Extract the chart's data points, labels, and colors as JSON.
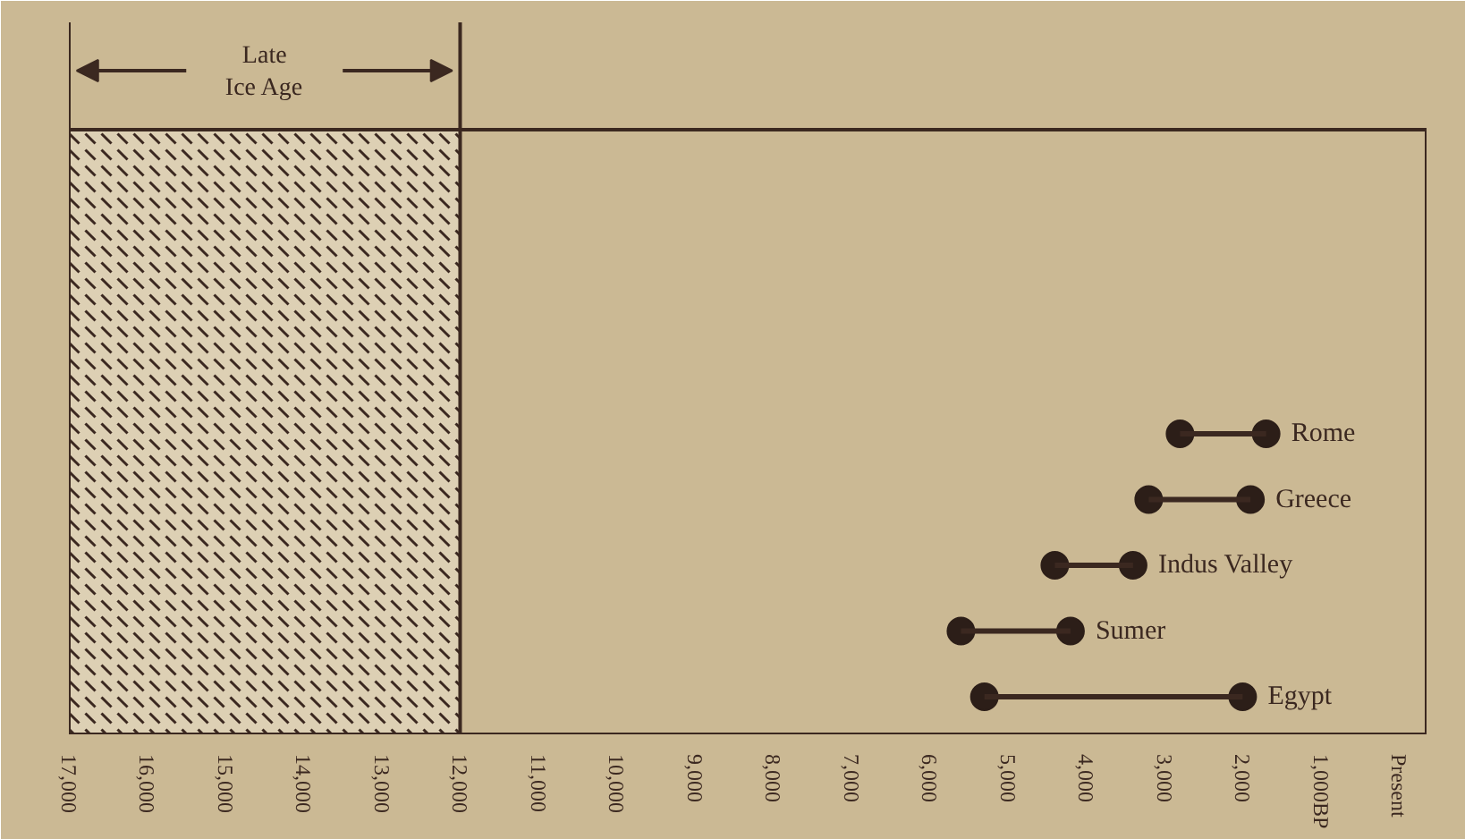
{
  "chart_data": {
    "type": "bar",
    "orientation": "horizontal",
    "categories": [
      "Rome",
      "Greece",
      "Indus Valley",
      "Sumer",
      "Egypt"
    ],
    "series": [
      {
        "type": "scatter",
        "color": "#2c1e18",
        "marker": "circle",
        "values": [
          2800,
          3200,
          4400,
          5600,
          5300
        ]
      },
      {
        "type": "scatter",
        "color": "#2c1e18",
        "marker": "circle",
        "values": [
          1700,
          1900,
          3400,
          4200,
          2000
        ]
      },
      {
        "color": "#3b2820",
        "base": [
          1700,
          1900,
          3400,
          4200,
          2000
        ],
        "values": [
          1100,
          1300,
          1000,
          1400,
          3300
        ]
      }
    ],
    "xlim": [
      17000,
      -350
    ],
    "xticks": [
      {
        "value": 17000,
        "label": "17,000"
      },
      {
        "value": 16000,
        "label": "16,000"
      },
      {
        "value": 15000,
        "label": "15,000"
      },
      {
        "value": 14000,
        "label": "14,000"
      },
      {
        "value": 13000,
        "label": "13,000"
      },
      {
        "value": 12000,
        "label": "12,000"
      },
      {
        "value": 11000,
        "label": "11,000"
      },
      {
        "value": 10000,
        "label": "10,000"
      },
      {
        "value": 9000,
        "label": "9,000"
      },
      {
        "value": 8000,
        "label": "8,000"
      },
      {
        "value": 7000,
        "label": "7,000"
      },
      {
        "value": 6000,
        "label": "6,000"
      },
      {
        "value": 5000,
        "label": "5,000"
      },
      {
        "value": 4000,
        "label": "4,000"
      },
      {
        "value": 3000,
        "label": "3,000"
      },
      {
        "value": 2000,
        "label": "2,000"
      },
      {
        "value": 1000,
        "label": "1,000BP"
      },
      {
        "value": 0,
        "label": "Present"
      }
    ],
    "bands": [
      {
        "axis": "x",
        "from": 17000,
        "to": 12000,
        "label": "Late Ice Age",
        "color": "#ddd0b4"
      }
    ],
    "grid": false
  }
}
